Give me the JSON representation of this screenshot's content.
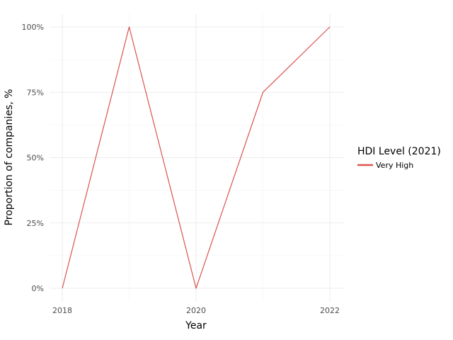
{
  "chart_data": {
    "type": "line",
    "xlabel": "Year",
    "ylabel": "Proportion of companies, %",
    "x": [
      2018,
      2019,
      2020,
      2021,
      2022
    ],
    "x_ticks": [
      "2018",
      "2020",
      "2022"
    ],
    "y_ticks": [
      "0%",
      "25%",
      "50%",
      "75%",
      "100%"
    ],
    "xlim": [
      2018,
      2022
    ],
    "ylim": [
      0,
      100
    ],
    "grid": true,
    "legend": {
      "title": "HDI Level (2021)",
      "placement": "right",
      "entries": [
        "Very High"
      ]
    },
    "series": [
      {
        "name": "Very High",
        "color": "#d9534f",
        "values": [
          0,
          100,
          0,
          75,
          100
        ]
      }
    ]
  }
}
